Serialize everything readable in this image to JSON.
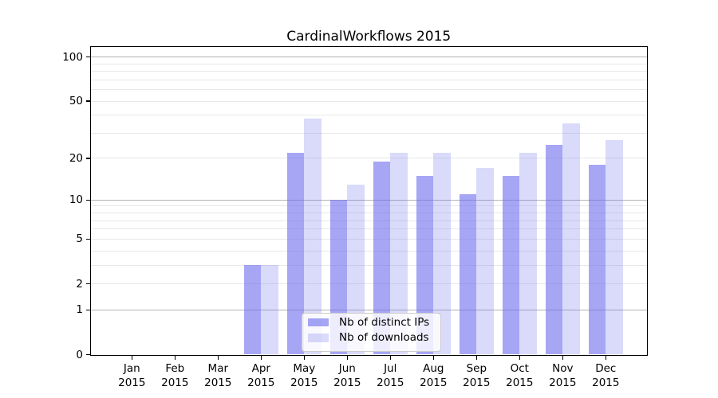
{
  "title": "CardinalWorkflows 2015",
  "chart_data": {
    "type": "bar",
    "title": "CardinalWorkflows 2015",
    "categories": [
      "Jan",
      "Feb",
      "Mar",
      "Apr",
      "May",
      "Jun",
      "Jul",
      "Aug",
      "Sep",
      "Oct",
      "Nov",
      "Dec"
    ],
    "category_year": "2015",
    "series": [
      {
        "name": "Nb of distinct IPs",
        "color": "#6b6bee",
        "alpha": 0.6,
        "values": [
          0,
          0,
          0,
          3,
          22,
          10,
          19,
          15,
          11,
          15,
          25,
          18
        ]
      },
      {
        "name": "Nb of downloads",
        "color": "#6b6bee",
        "alpha": 0.25,
        "values": [
          0,
          0,
          0,
          3,
          38,
          13,
          22,
          22,
          17,
          22,
          35,
          27
        ]
      }
    ],
    "y_scale": "log1p",
    "y_ticks_labeled": [
      0,
      1,
      2,
      5,
      10,
      20,
      50,
      100
    ],
    "y_gridlines_major": [
      1,
      10,
      100
    ],
    "y_gridlines_minor": [
      2,
      3,
      4,
      5,
      6,
      7,
      8,
      9,
      20,
      30,
      40,
      50,
      60,
      70,
      80,
      90
    ],
    "ylim": [
      0,
      117
    ],
    "grid": "on",
    "legend_position": "lower center"
  },
  "colors": {
    "grid_major": "#b3b3b3",
    "grid_minor": "#e8e8e8",
    "legend_border": "#cccccc",
    "text": "#000000"
  }
}
